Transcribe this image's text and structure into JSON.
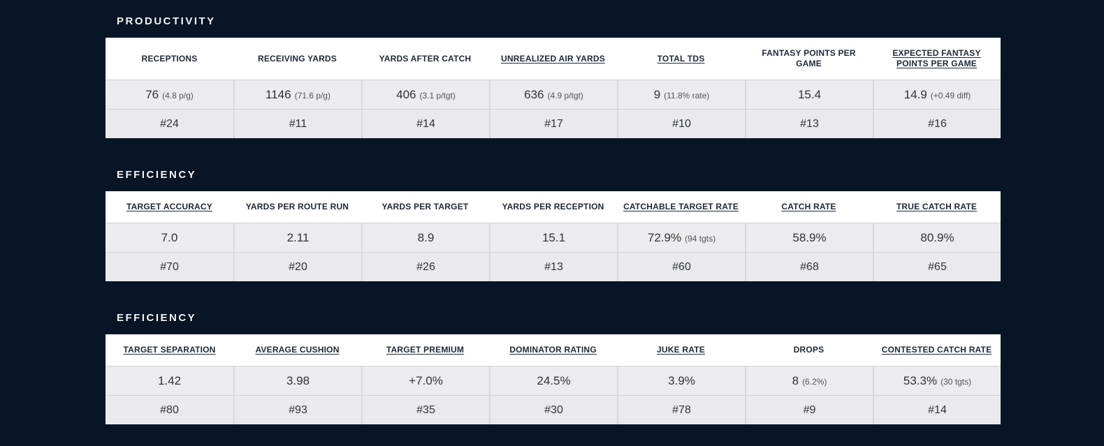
{
  "colors": {
    "page_background": "#071526",
    "header_row_background": "#ffffff",
    "value_row_background": "#ececee",
    "rank_row_background": "#eaeaed",
    "cell_border": "#d8d8db",
    "header_text": "#1c2838",
    "title_text": "#f4f7fa"
  },
  "sections": [
    {
      "title": "PRODUCTIVITY",
      "columns": [
        {
          "label": "RECEPTIONS",
          "underline": false,
          "value": "76",
          "note": "(4.8 p/g)",
          "rank": "#24"
        },
        {
          "label": "RECEIVING YARDS",
          "underline": false,
          "value": "1146",
          "note": "(71.6 p/g)",
          "rank": "#11"
        },
        {
          "label": "YARDS AFTER CATCH",
          "underline": false,
          "value": "406",
          "note": "(3.1 p/tgt)",
          "rank": "#14"
        },
        {
          "label": "UNREALIZED AIR YARDS",
          "underline": true,
          "value": "636",
          "note": "(4.9 p/tgt)",
          "rank": "#17"
        },
        {
          "label": "TOTAL TDS",
          "underline": true,
          "value": "9",
          "note": "(11.8% rate)",
          "rank": "#10"
        },
        {
          "label": "FANTASY POINTS PER GAME",
          "underline": false,
          "value": "15.4",
          "note": "",
          "rank": "#13"
        },
        {
          "label": "EXPECTED FANTASY POINTS PER GAME",
          "underline": true,
          "value": "14.9",
          "note": "(+0.49 diff)",
          "rank": "#16"
        }
      ]
    },
    {
      "title": "EFFICIENCY",
      "columns": [
        {
          "label": "TARGET ACCURACY",
          "underline": true,
          "value": "7.0",
          "note": "",
          "rank": "#70"
        },
        {
          "label": "YARDS PER ROUTE RUN",
          "underline": false,
          "value": "2.11",
          "note": "",
          "rank": "#20"
        },
        {
          "label": "YARDS PER TARGET",
          "underline": false,
          "value": "8.9",
          "note": "",
          "rank": "#26"
        },
        {
          "label": "YARDS PER RECEPTION",
          "underline": false,
          "value": "15.1",
          "note": "",
          "rank": "#13"
        },
        {
          "label": "CATCHABLE TARGET RATE",
          "underline": true,
          "value": "72.9%",
          "note": "(94 tgts)",
          "rank": "#60"
        },
        {
          "label": "CATCH RATE",
          "underline": true,
          "value": "58.9%",
          "note": "",
          "rank": "#68"
        },
        {
          "label": "TRUE CATCH RATE",
          "underline": true,
          "value": "80.9%",
          "note": "",
          "rank": "#65"
        }
      ]
    },
    {
      "title": "EFFICIENCY",
      "columns": [
        {
          "label": "TARGET SEPARATION",
          "underline": true,
          "value": "1.42",
          "note": "",
          "rank": "#80"
        },
        {
          "label": "AVERAGE CUSHION",
          "underline": true,
          "value": "3.98",
          "note": "",
          "rank": "#93"
        },
        {
          "label": "TARGET PREMIUM",
          "underline": true,
          "value": "+7.0%",
          "note": "",
          "rank": "#35"
        },
        {
          "label": "DOMINATOR RATING",
          "underline": true,
          "value": "24.5%",
          "note": "",
          "rank": "#30"
        },
        {
          "label": "JUKE RATE",
          "underline": true,
          "value": "3.9%",
          "note": "",
          "rank": "#78"
        },
        {
          "label": "DROPS",
          "underline": false,
          "value": "8",
          "note": "(6.2%)",
          "rank": "#9"
        },
        {
          "label": "CONTESTED CATCH RATE",
          "underline": true,
          "value": "53.3%",
          "note": "(30 tgts)",
          "rank": "#14"
        }
      ]
    }
  ]
}
